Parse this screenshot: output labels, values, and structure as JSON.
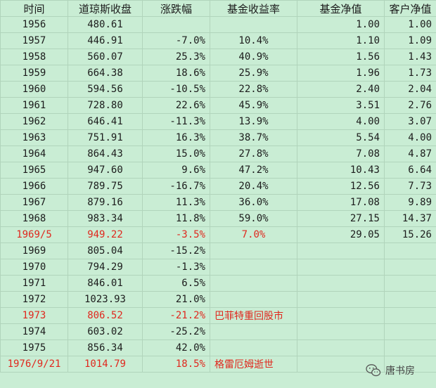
{
  "headers": {
    "time": "时间",
    "dow": "道琼斯收盘",
    "change": "涨跌幅",
    "fund_return": "基金收益率",
    "fund_nav": "基金净值",
    "client_nav": "客户净值"
  },
  "rows": [
    {
      "time": "1956",
      "dow": "480.61",
      "change": "",
      "fund_return": "",
      "fund_nav": "1.00",
      "client_nav": "1.00"
    },
    {
      "time": "1957",
      "dow": "446.91",
      "change": "-7.0%",
      "fund_return": "10.4%",
      "fund_nav": "1.10",
      "client_nav": "1.09"
    },
    {
      "time": "1958",
      "dow": "560.07",
      "change": "25.3%",
      "fund_return": "40.9%",
      "fund_nav": "1.56",
      "client_nav": "1.43"
    },
    {
      "time": "1959",
      "dow": "664.38",
      "change": "18.6%",
      "fund_return": "25.9%",
      "fund_nav": "1.96",
      "client_nav": "1.73"
    },
    {
      "time": "1960",
      "dow": "594.56",
      "change": "-10.5%",
      "fund_return": "22.8%",
      "fund_nav": "2.40",
      "client_nav": "2.04"
    },
    {
      "time": "1961",
      "dow": "728.80",
      "change": "22.6%",
      "fund_return": "45.9%",
      "fund_nav": "3.51",
      "client_nav": "2.76"
    },
    {
      "time": "1962",
      "dow": "646.41",
      "change": "-11.3%",
      "fund_return": "13.9%",
      "fund_nav": "4.00",
      "client_nav": "3.07"
    },
    {
      "time": "1963",
      "dow": "751.91",
      "change": "16.3%",
      "fund_return": "38.7%",
      "fund_nav": "5.54",
      "client_nav": "4.00"
    },
    {
      "time": "1964",
      "dow": "864.43",
      "change": "15.0%",
      "fund_return": "27.8%",
      "fund_nav": "7.08",
      "client_nav": "4.87"
    },
    {
      "time": "1965",
      "dow": "947.60",
      "change": "9.6%",
      "fund_return": "47.2%",
      "fund_nav": "10.43",
      "client_nav": "6.64"
    },
    {
      "time": "1966",
      "dow": "789.75",
      "change": "-16.7%",
      "fund_return": "20.4%",
      "fund_nav": "12.56",
      "client_nav": "7.73"
    },
    {
      "time": "1967",
      "dow": "879.16",
      "change": "11.3%",
      "fund_return": "36.0%",
      "fund_nav": "17.08",
      "client_nav": "9.89"
    },
    {
      "time": "1968",
      "dow": "983.34",
      "change": "11.8%",
      "fund_return": "59.0%",
      "fund_nav": "27.15",
      "client_nav": "14.37"
    },
    {
      "time": "1969/5",
      "dow": "949.22",
      "change": "-3.5%",
      "fund_return": "7.0%",
      "fund_nav": "29.05",
      "client_nav": "15.26"
    },
    {
      "time": "1969",
      "dow": "805.04",
      "change": "-15.2%",
      "fund_return": "",
      "fund_nav": "",
      "client_nav": ""
    },
    {
      "time": "1970",
      "dow": "794.29",
      "change": "-1.3%",
      "fund_return": "",
      "fund_nav": "",
      "client_nav": ""
    },
    {
      "time": "1971",
      "dow": "846.01",
      "change": "6.5%",
      "fund_return": "",
      "fund_nav": "",
      "client_nav": ""
    },
    {
      "time": "1972",
      "dow": "1023.93",
      "change": "21.0%",
      "fund_return": "",
      "fund_nav": "",
      "client_nav": ""
    },
    {
      "time": "1973",
      "dow": "806.52",
      "change": "-21.2%",
      "fund_return": "巴菲特重回股市",
      "fund_nav": "",
      "client_nav": ""
    },
    {
      "time": "1974",
      "dow": "603.02",
      "change": "-25.2%",
      "fund_return": "",
      "fund_nav": "",
      "client_nav": ""
    },
    {
      "time": "1975",
      "dow": "856.34",
      "change": "42.0%",
      "fund_return": "",
      "fund_nav": "",
      "client_nav": ""
    },
    {
      "time": "1976/9/21",
      "dow": "1014.79",
      "change": "18.5%",
      "fund_return": "格雷厄姆逝世",
      "fund_nav": "",
      "client_nav": ""
    }
  ],
  "highlight_color": "#e0281e",
  "background_color": "#c9edd4",
  "watermark": {
    "icon": "wechat-icon",
    "text": "唐书房"
  }
}
